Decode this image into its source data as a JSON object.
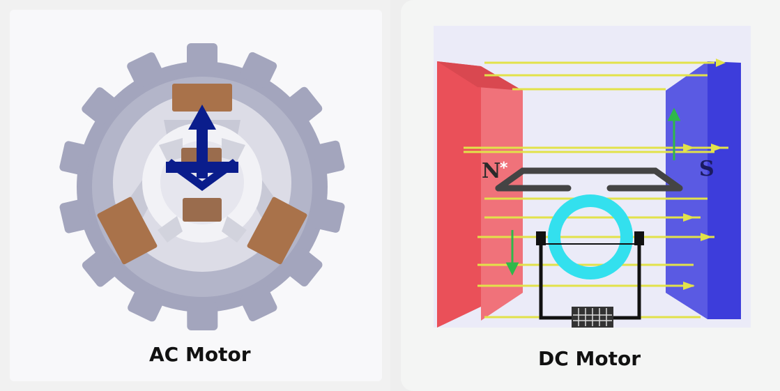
{
  "panels": {
    "ac": {
      "caption": "AC Motor",
      "colors": {
        "stator": "#a3a5bd",
        "stator_light": "#cfd0dc",
        "coil": "#a9724a",
        "arrow": "#0a1d8c"
      }
    },
    "dc": {
      "caption": "DC Motor",
      "north_label": "N",
      "south_label": "S",
      "colors": {
        "north_pole": "#ea5059",
        "south_pole": "#3d3ddb",
        "field_lines": "#e2e24a",
        "commutator_ring": "#33e0ee",
        "wire": "#111111"
      }
    }
  }
}
